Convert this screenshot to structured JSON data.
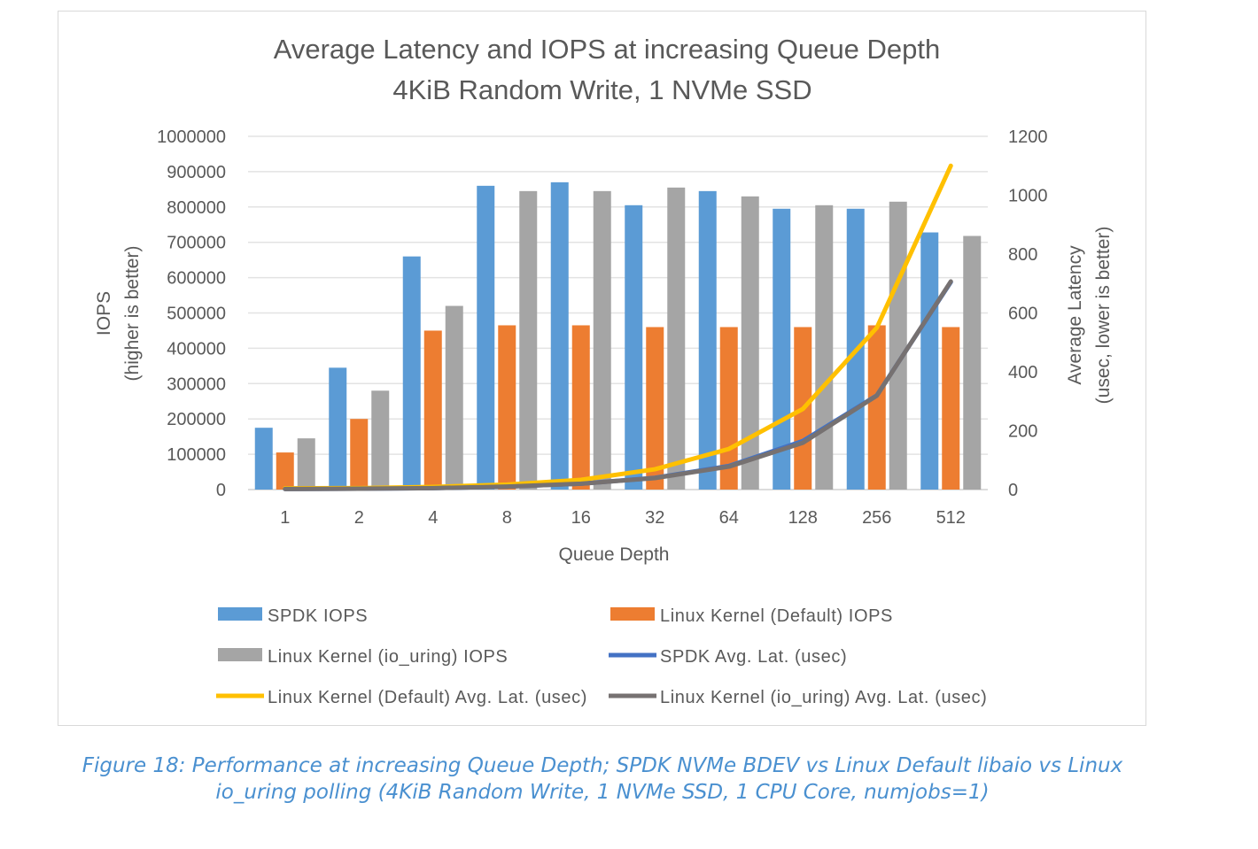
{
  "chart_data": {
    "type": "bar",
    "title": "Average Latency and IOPS at increasing Queue Depth",
    "subtitle": "4KiB Random Write, 1 NVMe SSD",
    "xlabel": "Queue Depth",
    "ylabel": "IOPS",
    "ylabel2": "(higher is better)",
    "y2label": "Average Latency",
    "y2label2": "(usec, lower is better)",
    "categories": [
      "1",
      "2",
      "4",
      "8",
      "16",
      "32",
      "64",
      "128",
      "256",
      "512"
    ],
    "ylim": [
      0,
      1000000
    ],
    "yticks": [
      "0",
      "100000",
      "200000",
      "300000",
      "400000",
      "500000",
      "600000",
      "700000",
      "800000",
      "900000",
      "1000000"
    ],
    "y2lim": [
      0,
      1200
    ],
    "y2ticks": [
      "0",
      "200",
      "400",
      "600",
      "800",
      "1000",
      "1200"
    ],
    "grid": true,
    "legend": "bottom",
    "series": [
      {
        "name": "SPDK IOPS",
        "kind": "bar",
        "axis": "left",
        "color": "#5b9bd5",
        "values": [
          175000,
          345000,
          660000,
          860000,
          870000,
          805000,
          845000,
          795000,
          795000,
          728000
        ]
      },
      {
        "name": "Linux Kernel (Default) IOPS",
        "kind": "bar",
        "axis": "left",
        "color": "#ed7d31",
        "values": [
          105000,
          200000,
          450000,
          465000,
          465000,
          460000,
          460000,
          460000,
          465000,
          460000
        ]
      },
      {
        "name": "Linux Kernel (io_uring) IOPS",
        "kind": "bar",
        "axis": "left",
        "color": "#a5a5a5",
        "values": [
          145000,
          280000,
          520000,
          845000,
          845000,
          855000,
          830000,
          805000,
          815000,
          718000
        ]
      },
      {
        "name": "SPDK Avg. Lat. (usec)",
        "kind": "line",
        "axis": "right",
        "color": "#4472c4",
        "values": [
          2,
          3,
          5,
          10,
          20,
          40,
          80,
          165,
          320,
          705
        ]
      },
      {
        "name": "Linux Kernel (Default) Avg. Lat. (usec)",
        "kind": "line",
        "axis": "right",
        "color": "#ffc000",
        "values": [
          4,
          5,
          9,
          17,
          33,
          69,
          138,
          274,
          550,
          1100
        ]
      },
      {
        "name": "Linux Kernel (io_uring)  Avg. Lat. (usec)",
        "kind": "line",
        "axis": "right",
        "color": "#767171",
        "values": [
          2,
          3,
          5,
          10,
          20,
          39,
          78,
          159,
          319,
          707
        ]
      }
    ]
  },
  "caption": {
    "line1": "Figure 18: Performance at increasing Queue Depth; SPDK NVMe BDEV vs Linux Default libaio vs Linux",
    "line2": "io_uring polling (4KiB Random Write, 1 NVMe SSD, 1 CPU Core, numjobs=1)"
  }
}
